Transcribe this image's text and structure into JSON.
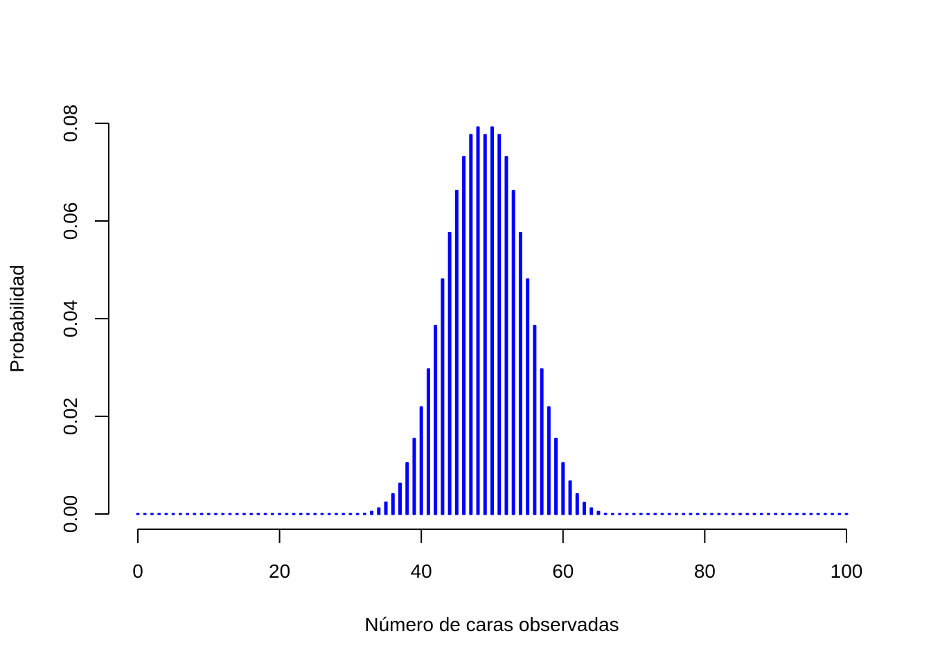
{
  "chart_data": {
    "type": "bar",
    "title": "",
    "xlabel": "Número de caras observadas",
    "ylabel": "Probabilidad",
    "xlim": [
      0,
      100
    ],
    "ylim": [
      0,
      0.08
    ],
    "x_ticks": [
      "0",
      "20",
      "40",
      "60",
      "80",
      "100"
    ],
    "y_ticks": [
      "0.00",
      "0.02",
      "0.04",
      "0.06",
      "0.08"
    ],
    "color": "#0000ff",
    "grid": false,
    "legend": "none",
    "distribution": "binomial(n=100, p=0.5)",
    "x": [
      0,
      1,
      2,
      3,
      4,
      5,
      6,
      7,
      8,
      9,
      10,
      11,
      12,
      13,
      14,
      15,
      16,
      17,
      18,
      19,
      20,
      21,
      22,
      23,
      24,
      25,
      26,
      27,
      28,
      29,
      30,
      31,
      32,
      33,
      34,
      35,
      36,
      37,
      38,
      39,
      40,
      41,
      42,
      43,
      44,
      45,
      46,
      47,
      48,
      49,
      50,
      51,
      52,
      53,
      54,
      55,
      56,
      57,
      58,
      59,
      60,
      61,
      62,
      63,
      64,
      65,
      66,
      67,
      68,
      69,
      70,
      71,
      72,
      73,
      74,
      75,
      76,
      77,
      78,
      79,
      80,
      81,
      82,
      83,
      84,
      85,
      86,
      87,
      88,
      89,
      90,
      91,
      92,
      93,
      94,
      95,
      96,
      97,
      98,
      99,
      100
    ],
    "values": [
      0,
      0,
      0,
      0,
      0,
      0,
      0,
      0,
      0,
      0,
      0,
      0,
      0,
      0,
      0,
      0,
      0,
      0,
      0,
      0,
      0,
      0,
      0,
      0,
      0,
      0,
      0,
      0,
      2e-05,
      4e-05,
      0.00012,
      0.00023,
      0.00046,
      0.00087,
      0.00158,
      0.00276,
      0.00447,
      0.00665,
      0.01084,
      0.01584,
      0.02229,
      0.03007,
      0.03895,
      0.04847,
      0.05796,
      0.06659,
      0.07353,
      0.07803,
      0.07959,
      0.07803,
      0.07959,
      0.07803,
      0.07353,
      0.06659,
      0.05796,
      0.04847,
      0.03895,
      0.03007,
      0.02229,
      0.01584,
      0.01084,
      0.00711,
      0.00447,
      0.0027,
      0.00158,
      0.00087,
      0.00046,
      0.00023,
      0.00012,
      4e-05,
      2e-05,
      0,
      0,
      0,
      0,
      0,
      0,
      0,
      0,
      0,
      0,
      0,
      0,
      0,
      0,
      0,
      0,
      0,
      0,
      0,
      0,
      0,
      0,
      0,
      0,
      0,
      0,
      0,
      0,
      0,
      0
    ]
  }
}
